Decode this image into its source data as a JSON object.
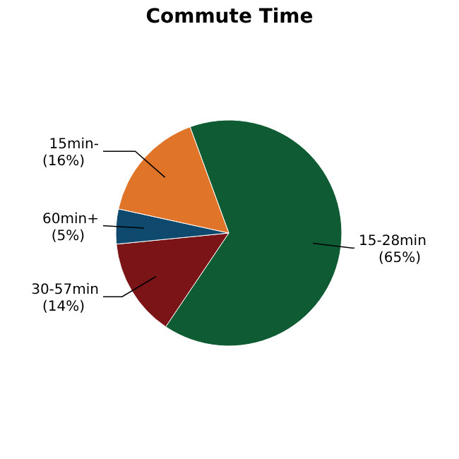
{
  "chart_data": {
    "type": "pie",
    "title": "Commute Time",
    "categories": [
      "15-28min",
      "30-57min",
      "60min+",
      "15min-"
    ],
    "values": [
      65,
      14,
      5,
      16
    ],
    "value_labels": [
      "(65%)",
      "(14%)",
      "(5%)",
      "(16%)"
    ],
    "colors": [
      "#0f5c34",
      "#7a1416",
      "#0f4a6e",
      "#e07428"
    ]
  }
}
